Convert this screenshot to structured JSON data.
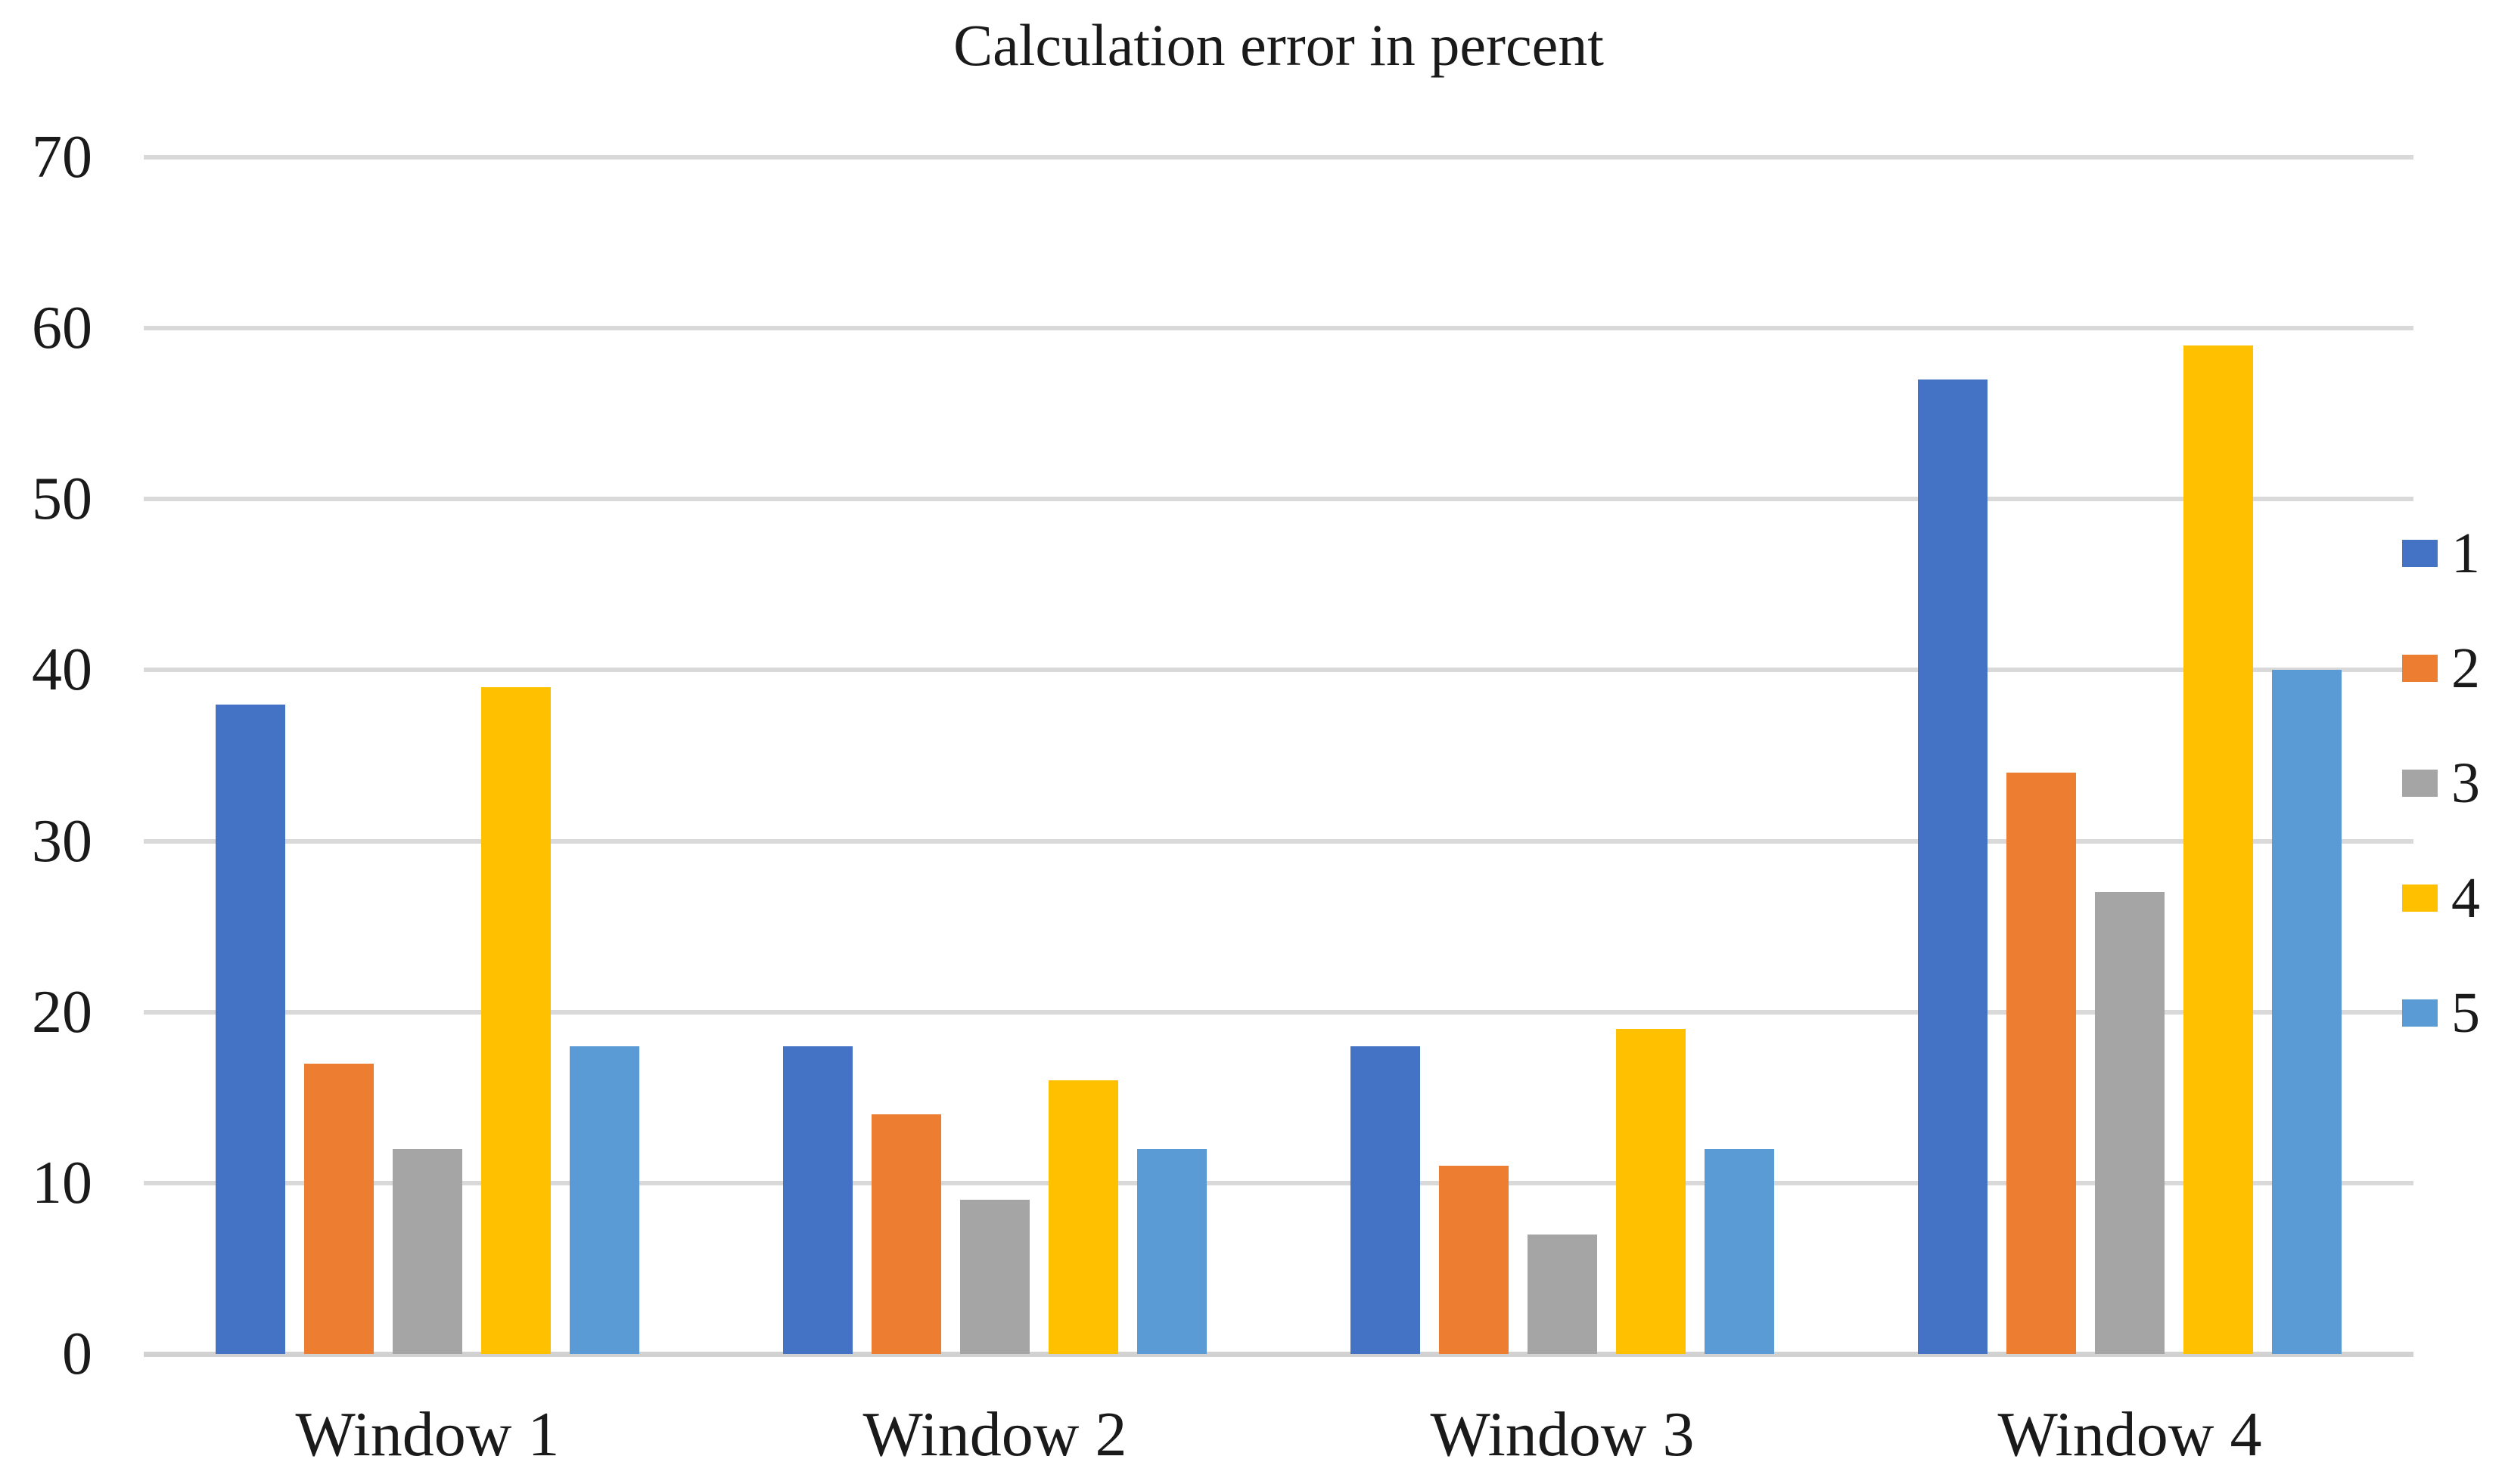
{
  "chart_data": {
    "type": "bar",
    "title": "Calculation error in percent",
    "categories": [
      "Window 1",
      "Window 2",
      "Window 3",
      "Window 4"
    ],
    "series": [
      {
        "name": "1",
        "color": "#4472C4",
        "values": [
          38,
          18,
          18,
          57
        ]
      },
      {
        "name": "2",
        "color": "#ED7D31",
        "values": [
          17,
          14,
          11,
          34
        ]
      },
      {
        "name": "3",
        "color": "#A5A5A5",
        "values": [
          12,
          9,
          7,
          27
        ]
      },
      {
        "name": "4",
        "color": "#FFC000",
        "values": [
          39,
          16,
          19,
          59
        ]
      },
      {
        "name": "5",
        "color": "#5B9BD5",
        "values": [
          18,
          12,
          12,
          40
        ]
      }
    ],
    "y_axis": {
      "min": 0,
      "max": 70,
      "step": 10,
      "tick_labels": [
        "0",
        "10",
        "20",
        "30",
        "40",
        "50",
        "60",
        "70"
      ]
    },
    "legend": {
      "position": "right",
      "entries": [
        "1",
        "2",
        "3",
        "4",
        "5"
      ]
    },
    "grid": true,
    "ylabel": "",
    "xlabel": "",
    "colors": {
      "gridline": "#D9D9D9",
      "baseline": "#D2D2D2",
      "text": "#1A1A1A",
      "background": "#FFFFFF"
    }
  }
}
